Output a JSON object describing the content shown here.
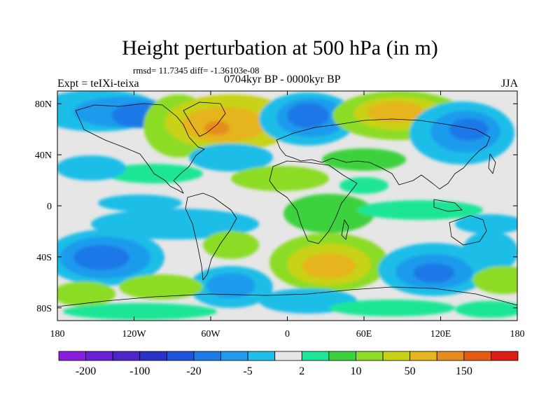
{
  "title": "Height perturbation at 500 hPa (in m)",
  "stats": "rmsd= 11.7345 diff= -1.36103e-08",
  "experiment": "Expt = teIXi-teixa",
  "period": "0704kyr BP - 0000kyr BP",
  "season": "JJA",
  "map": {
    "projection": "cylindrical-equidistant",
    "lon_range": [
      -180,
      180
    ],
    "lat_range": [
      -90,
      90
    ],
    "lon_ticks": [
      {
        "value": -180,
        "label": "180"
      },
      {
        "value": -120,
        "label": "120W"
      },
      {
        "value": -60,
        "label": "60W"
      },
      {
        "value": 0,
        "label": "0"
      },
      {
        "value": 60,
        "label": "60E"
      },
      {
        "value": 120,
        "label": "120E"
      },
      {
        "value": 180,
        "label": "180"
      }
    ],
    "lat_ticks": [
      {
        "value": 80,
        "label": "80N"
      },
      {
        "value": 40,
        "label": "40N"
      },
      {
        "value": 0,
        "label": "0"
      },
      {
        "value": -40,
        "label": "40S"
      },
      {
        "value": -80,
        "label": "80S"
      }
    ],
    "background_color": "#e6e6e6"
  },
  "colorbar": {
    "colors": [
      "#8a1ee0",
      "#6a1ed6",
      "#4b26c8",
      "#2a33c8",
      "#1e55dc",
      "#1e78e6",
      "#1e9bec",
      "#1ebee8",
      "#e6e6e6",
      "#1ee696",
      "#3cd23c",
      "#8cdc28",
      "#c8d214",
      "#e6b41e",
      "#e68c1e",
      "#e65a14",
      "#dc1e14"
    ],
    "labels": [
      {
        "after": 1,
        "text": "-200"
      },
      {
        "after": 3,
        "text": "-100"
      },
      {
        "after": 5,
        "text": "-20"
      },
      {
        "after": 7,
        "text": "-5"
      },
      {
        "after": 9,
        "text": "2"
      },
      {
        "after": 11,
        "text": "10"
      },
      {
        "after": 13,
        "text": "50"
      },
      {
        "after": 15,
        "text": "150"
      }
    ]
  }
}
